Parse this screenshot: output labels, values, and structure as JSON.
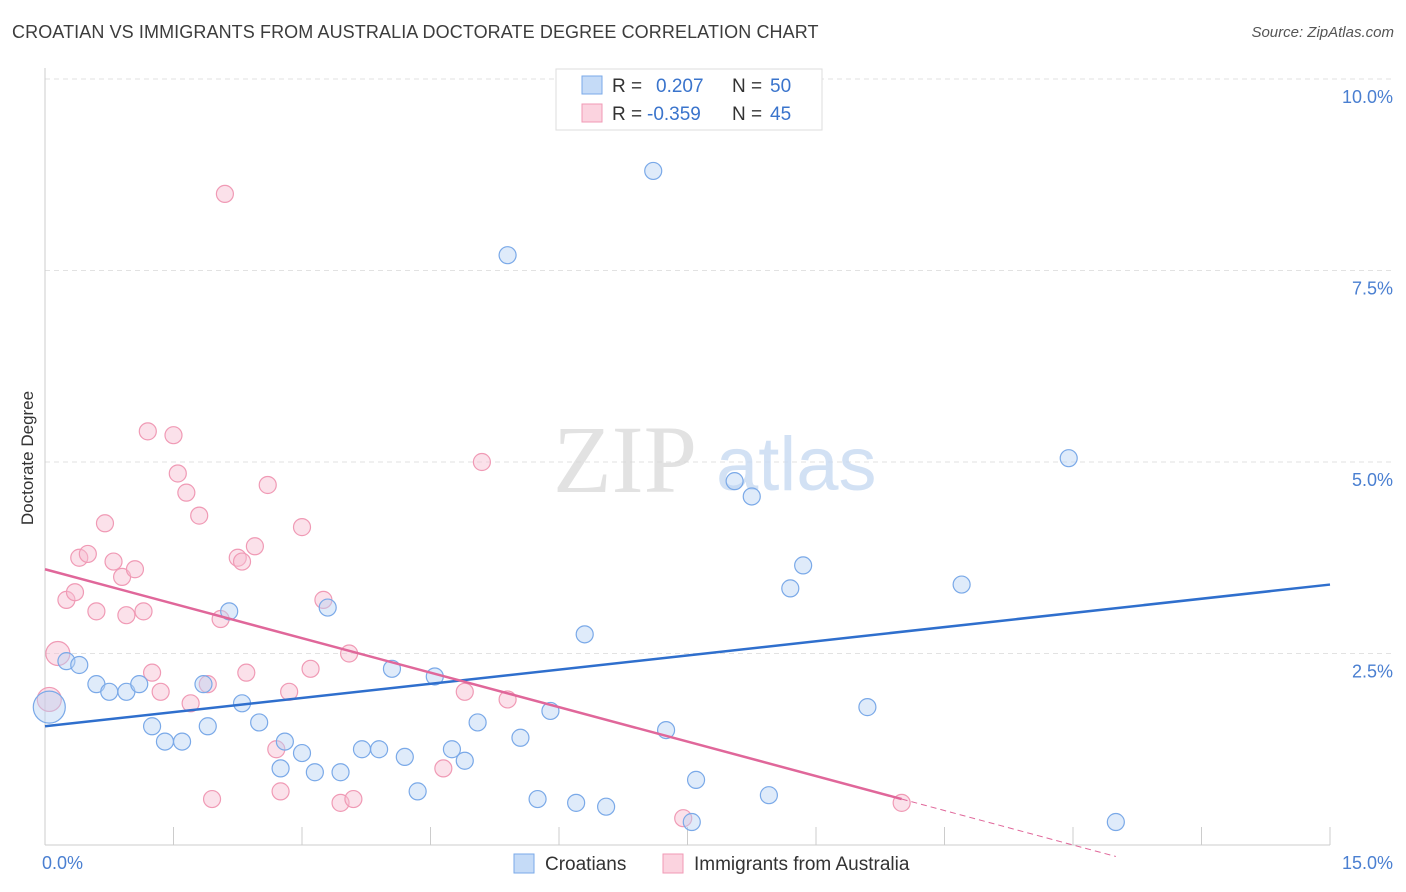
{
  "title": "CROATIAN VS IMMIGRANTS FROM AUSTRALIA DOCTORATE DEGREE CORRELATION CHART",
  "source": "Source: ZipAtlas.com",
  "watermark": {
    "zip": "ZIP",
    "atlas": "atlas"
  },
  "colors": {
    "croatians": "#7aa9e8",
    "australia": "#f09ab5",
    "croatians_line": "#2f6fcd",
    "australia_line": "#e0679a"
  },
  "legend": {
    "rows": [
      {
        "r_label": "R =",
        "r_value": "0.207",
        "n_label": "N =",
        "n_value": "50"
      },
      {
        "r_label": "R =",
        "r_value": "-0.359",
        "n_label": "N =",
        "n_value": "45"
      }
    ]
  },
  "chart_data": {
    "type": "scatter",
    "title": "CROATIAN VS IMMIGRANTS FROM AUSTRALIA DOCTORATE DEGREE CORRELATION CHART",
    "xlabel": "",
    "ylabel": "Doctorate Degree",
    "xlim": [
      0,
      15
    ],
    "ylim": [
      0,
      10.5
    ],
    "x_tick_labels": [
      {
        "value": 0,
        "label": "0.0%"
      },
      {
        "value": 15,
        "label": "15.0%"
      }
    ],
    "y_tick_labels": [
      {
        "value": 2.5,
        "label": "2.5%"
      },
      {
        "value": 5.0,
        "label": "5.0%"
      },
      {
        "value": 7.5,
        "label": "7.5%"
      },
      {
        "value": 10.0,
        "label": "10.0%"
      }
    ],
    "grid": true,
    "legend_position": "top-center",
    "series": [
      {
        "name": "Croatians",
        "trend": {
          "x": [
            0,
            15
          ],
          "y": [
            1.55,
            3.4
          ]
        },
        "points": [
          [
            0.05,
            1.8
          ],
          [
            0.25,
            2.4
          ],
          [
            0.4,
            2.35
          ],
          [
            0.6,
            2.1
          ],
          [
            0.75,
            2.0
          ],
          [
            0.95,
            2.0
          ],
          [
            1.1,
            2.1
          ],
          [
            1.25,
            1.55
          ],
          [
            1.4,
            1.35
          ],
          [
            1.6,
            1.35
          ],
          [
            1.85,
            2.1
          ],
          [
            1.9,
            1.55
          ],
          [
            2.15,
            3.05
          ],
          [
            2.3,
            1.85
          ],
          [
            2.5,
            1.6
          ],
          [
            2.75,
            1.0
          ],
          [
            2.8,
            1.35
          ],
          [
            3.0,
            1.2
          ],
          [
            3.15,
            0.95
          ],
          [
            3.3,
            3.1
          ],
          [
            3.45,
            0.95
          ],
          [
            3.7,
            1.25
          ],
          [
            3.9,
            1.25
          ],
          [
            4.05,
            2.3
          ],
          [
            4.2,
            1.15
          ],
          [
            4.35,
            0.7
          ],
          [
            4.55,
            2.2
          ],
          [
            4.75,
            1.25
          ],
          [
            4.9,
            1.1
          ],
          [
            5.05,
            1.6
          ],
          [
            5.4,
            7.7
          ],
          [
            5.55,
            1.4
          ],
          [
            5.75,
            0.6
          ],
          [
            5.9,
            1.75
          ],
          [
            6.2,
            0.55
          ],
          [
            6.3,
            2.75
          ],
          [
            6.55,
            0.5
          ],
          [
            7.1,
            8.8
          ],
          [
            7.25,
            1.5
          ],
          [
            7.55,
            0.3
          ],
          [
            7.6,
            0.85
          ],
          [
            8.05,
            4.75
          ],
          [
            8.25,
            4.55
          ],
          [
            8.45,
            0.65
          ],
          [
            8.7,
            3.35
          ],
          [
            8.85,
            3.65
          ],
          [
            9.6,
            1.8
          ],
          [
            10.7,
            3.4
          ],
          [
            11.95,
            5.05
          ],
          [
            12.5,
            0.3
          ]
        ]
      },
      {
        "name": "Immigrants from Australia",
        "trend": {
          "x": [
            0,
            10.0
          ],
          "y": [
            3.6,
            0.6
          ]
        },
        "trend_dashed": {
          "x": [
            10.0,
            12.5
          ],
          "y": [
            0.6,
            -0.15
          ]
        },
        "points": [
          [
            0.05,
            1.9
          ],
          [
            0.15,
            2.5
          ],
          [
            0.25,
            3.2
          ],
          [
            0.35,
            3.3
          ],
          [
            0.4,
            3.75
          ],
          [
            0.5,
            3.8
          ],
          [
            0.6,
            3.05
          ],
          [
            0.7,
            4.2
          ],
          [
            0.8,
            3.7
          ],
          [
            0.9,
            3.5
          ],
          [
            0.95,
            3.0
          ],
          [
            1.05,
            3.6
          ],
          [
            1.15,
            3.05
          ],
          [
            1.2,
            5.4
          ],
          [
            1.25,
            2.25
          ],
          [
            1.35,
            2.0
          ],
          [
            1.5,
            5.35
          ],
          [
            1.55,
            4.85
          ],
          [
            1.65,
            4.6
          ],
          [
            1.7,
            1.85
          ],
          [
            1.8,
            4.3
          ],
          [
            1.9,
            2.1
          ],
          [
            1.95,
            0.6
          ],
          [
            2.05,
            2.95
          ],
          [
            2.1,
            8.5
          ],
          [
            2.25,
            3.75
          ],
          [
            2.3,
            3.7
          ],
          [
            2.35,
            2.25
          ],
          [
            2.45,
            3.9
          ],
          [
            2.6,
            4.7
          ],
          [
            2.7,
            1.25
          ],
          [
            2.75,
            0.7
          ],
          [
            2.85,
            2.0
          ],
          [
            3.0,
            4.15
          ],
          [
            3.1,
            2.3
          ],
          [
            3.25,
            3.2
          ],
          [
            3.45,
            0.55
          ],
          [
            3.55,
            2.5
          ],
          [
            3.6,
            0.6
          ],
          [
            4.65,
            1.0
          ],
          [
            4.9,
            2.0
          ],
          [
            5.1,
            5.0
          ],
          [
            5.4,
            1.9
          ],
          [
            7.45,
            0.35
          ],
          [
            10.0,
            0.55
          ]
        ]
      }
    ]
  },
  "bottom_legend": [
    {
      "label": "Croatians"
    },
    {
      "label": "Immigrants from Australia"
    }
  ]
}
